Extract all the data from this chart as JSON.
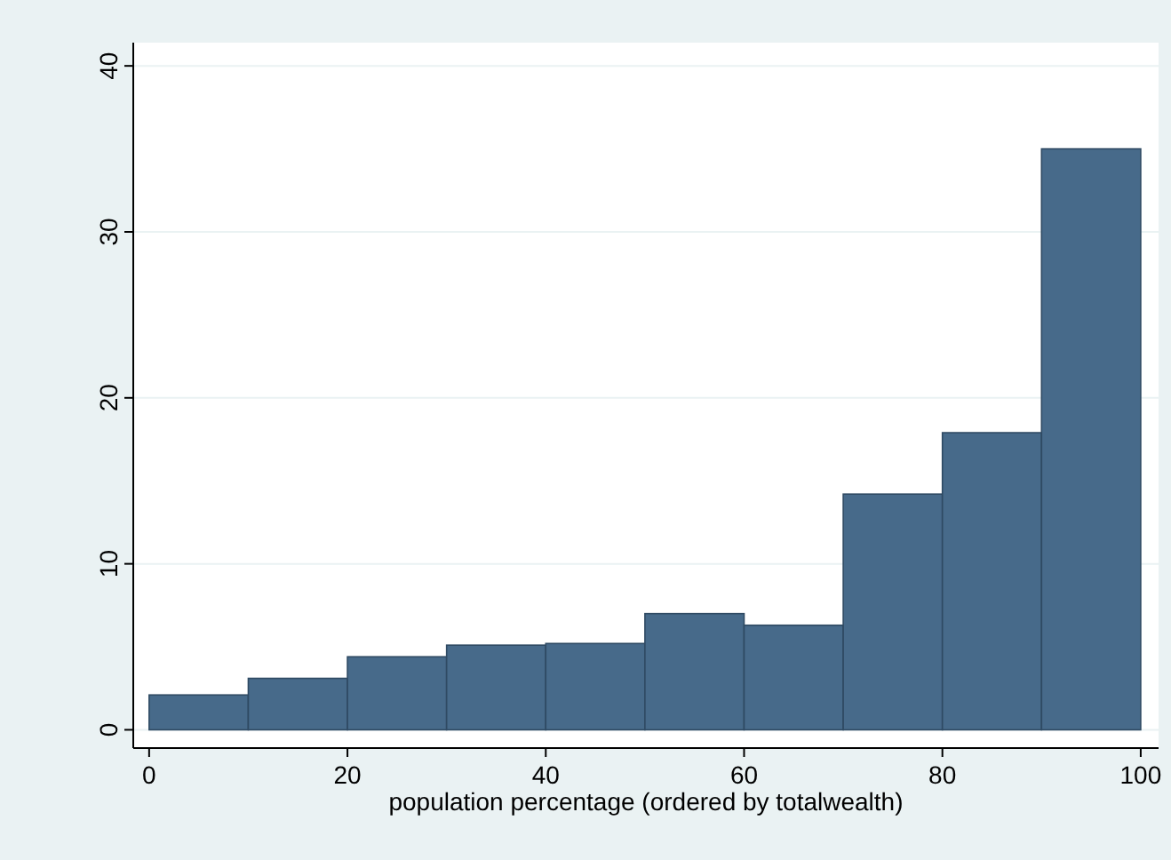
{
  "chart_data": {
    "type": "histogram",
    "xlabel": "population percentage (ordered by totalwealth)",
    "bins": [
      0,
      10,
      20,
      30,
      40,
      50,
      60,
      70,
      80,
      90,
      100
    ],
    "values": [
      2.1,
      3.1,
      4.4,
      5.1,
      5.2,
      7.0,
      6.3,
      14.2,
      17.9,
      35.0
    ],
    "color": "#476a8a",
    "xlim": [
      -1.6,
      101.8
    ],
    "ylim": [
      -1.1,
      41.4
    ],
    "xticks": [
      0,
      20,
      40,
      60,
      80,
      100
    ],
    "yticks": [
      0,
      10,
      20,
      30,
      40
    ],
    "grid": "y"
  }
}
